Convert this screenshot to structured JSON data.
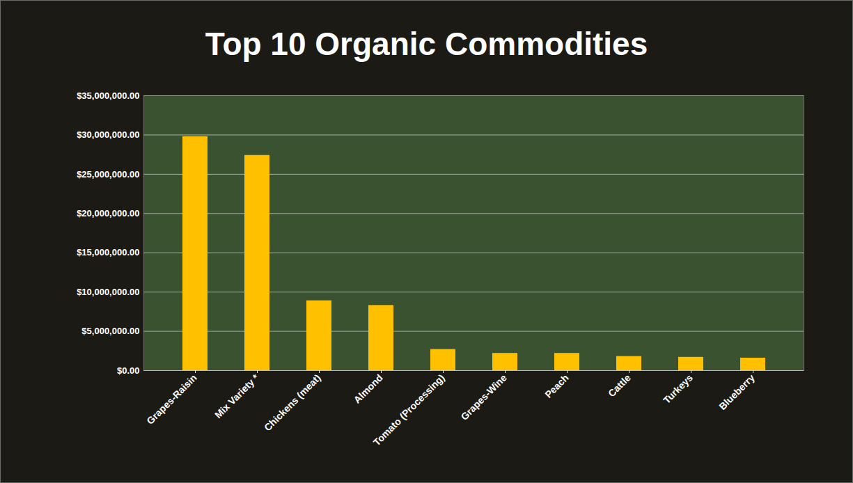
{
  "chart_data": {
    "type": "bar",
    "title": "Top 10 Organic Commodities",
    "categories": [
      "Grapes-Raisin",
      "Mix Variety *",
      "Chickens (meat)",
      "Almond",
      "Tomato (Processing)",
      "Grapes-Wine",
      "Peach",
      "Cattle",
      "Turkeys",
      "Blueberry"
    ],
    "values": [
      29800000,
      27400000,
      8900000,
      8300000,
      2700000,
      2200000,
      2200000,
      1800000,
      1700000,
      1600000
    ],
    "color": "#ffc000",
    "ylim": [
      0,
      35000000
    ],
    "yticks": [
      {
        "value": 0,
        "label": "$0.00"
      },
      {
        "value": 5000000,
        "label": "$5,000,000.00"
      },
      {
        "value": 10000000,
        "label": "$10,000,000.00"
      },
      {
        "value": 15000000,
        "label": "$15,000,000.00"
      },
      {
        "value": 20000000,
        "label": "$20,000,000.00"
      },
      {
        "value": 25000000,
        "label": "$25,000,000.00"
      },
      {
        "value": 30000000,
        "label": "$30,000,000.00"
      },
      {
        "value": 35000000,
        "label": "$35,000,000.00"
      }
    ],
    "grid": true
  }
}
